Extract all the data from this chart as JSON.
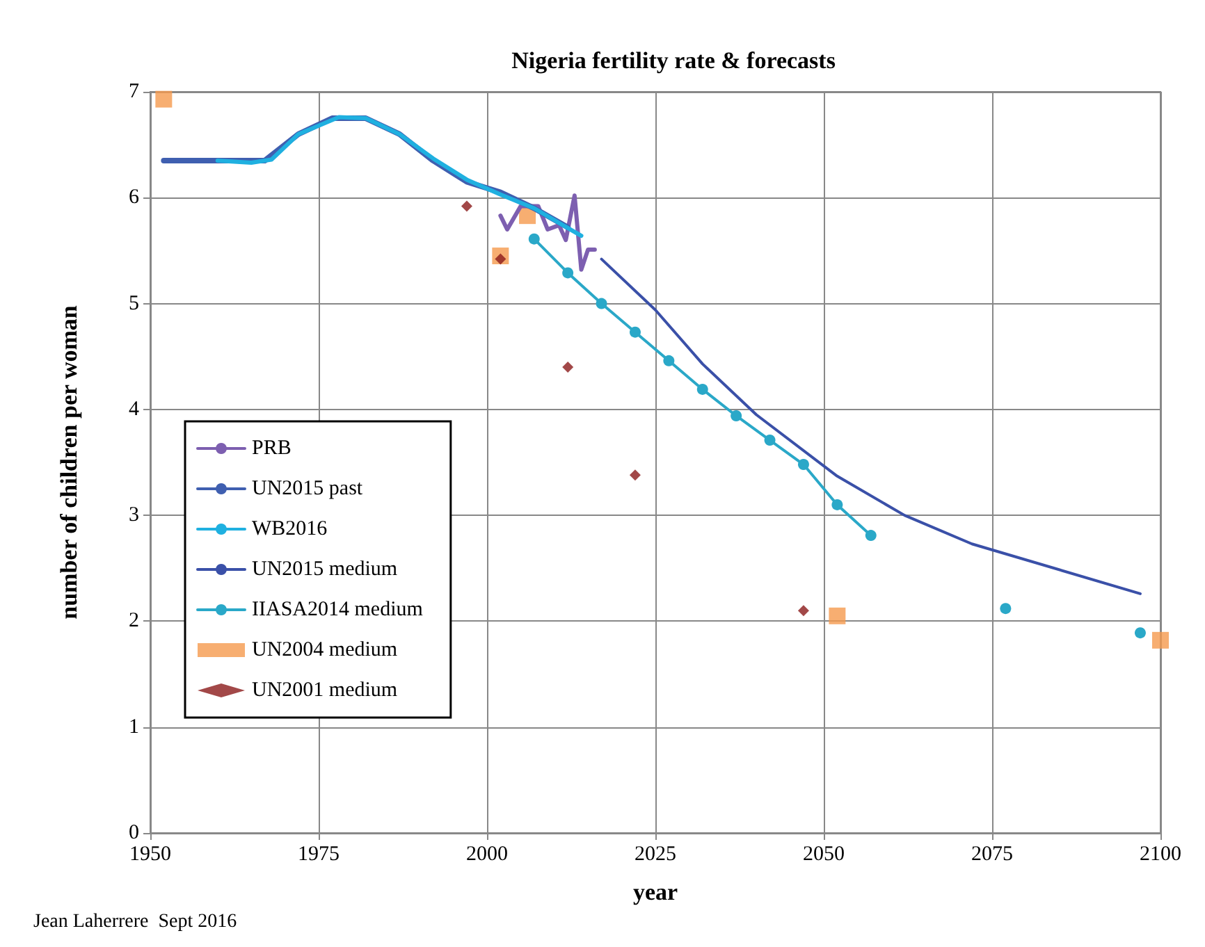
{
  "chart_data": {
    "type": "line",
    "title": "Nigeria fertility rate & forecasts",
    "xlabel": "year",
    "ylabel": "number of children per woman",
    "annotations": [
      "Jean Laherrere  Sept 2016"
    ],
    "xlim": [
      1950,
      2100
    ],
    "xticks": [
      1950,
      1975,
      2000,
      2025,
      2050,
      2075,
      2100
    ],
    "ylim": [
      0,
      7
    ],
    "yticks": [
      0,
      1,
      2,
      3,
      4,
      5,
      6,
      7
    ],
    "grid": true,
    "legend": "left",
    "series": [
      {
        "name": "PRB",
        "color": "#7d5fb0",
        "marker": "none",
        "x": [
          2002,
          2003,
          2005,
          2007.6,
          2009,
          2010.7,
          2011.7,
          2013,
          2014,
          2015,
          2016
        ],
        "values": [
          5.83,
          5.7,
          5.92,
          5.92,
          5.7,
          5.74,
          5.6,
          6.02,
          5.32,
          5.51,
          5.51
        ]
      },
      {
        "name": "UN2015 past",
        "color": "#3f5fb0",
        "marker": "none",
        "x": [
          1952,
          1957,
          1962,
          1967,
          1972,
          1977,
          1982,
          1987,
          1992,
          1997,
          2002,
          2007,
          2012
        ],
        "values": [
          6.35,
          6.35,
          6.35,
          6.35,
          6.6,
          6.75,
          6.75,
          6.6,
          6.35,
          6.15,
          6.05,
          5.9,
          5.72
        ]
      },
      {
        "name": "WB2016",
        "color": "#1fb0e0",
        "marker": "none",
        "x": [
          1960,
          1965,
          1968,
          1972,
          1978,
          1982,
          1987,
          1992,
          1997,
          2002,
          2007,
          2011,
          2014
        ],
        "values": [
          6.35,
          6.33,
          6.36,
          6.6,
          6.76,
          6.75,
          6.6,
          6.37,
          6.17,
          6.03,
          5.9,
          5.75,
          5.64
        ]
      },
      {
        "name": "UN2015 medium",
        "color": "#3a50a8",
        "marker": "none",
        "x": [
          2017,
          2025,
          2032,
          2040,
          2052,
          2062,
          2072,
          2097
        ],
        "values": [
          5.42,
          4.94,
          4.43,
          3.95,
          3.37,
          3.0,
          2.73,
          2.26
        ]
      },
      {
        "name": "IIASA2014 medium",
        "color": "#2aa8c8",
        "marker": "circle",
        "x": [
          2007,
          2012,
          2017,
          2022,
          2027,
          2032,
          2037,
          2042,
          2047,
          2052,
          2057,
          2067,
          2077,
          2087,
          2097
        ],
        "values": [
          5.61,
          5.29,
          5.0,
          4.73,
          4.46,
          4.19,
          3.94,
          3.71,
          3.48,
          3.1,
          2.81,
          null,
          2.12,
          null,
          1.89
        ]
      },
      {
        "name": "UN2004 medium",
        "color": "#f59a4e",
        "type": "scatter",
        "marker": "square",
        "x": [
          1952,
          2002,
          2006,
          2052,
          2100
        ],
        "values": [
          6.93,
          5.45,
          5.83,
          2.05,
          1.82
        ]
      },
      {
        "name": "UN2001 medium",
        "color": "#8b1a1a",
        "type": "scatter",
        "marker": "diamond",
        "x": [
          1997,
          2002,
          2012,
          2022,
          2047
        ],
        "values": [
          5.92,
          5.42,
          4.4,
          3.38,
          2.1
        ]
      }
    ]
  }
}
